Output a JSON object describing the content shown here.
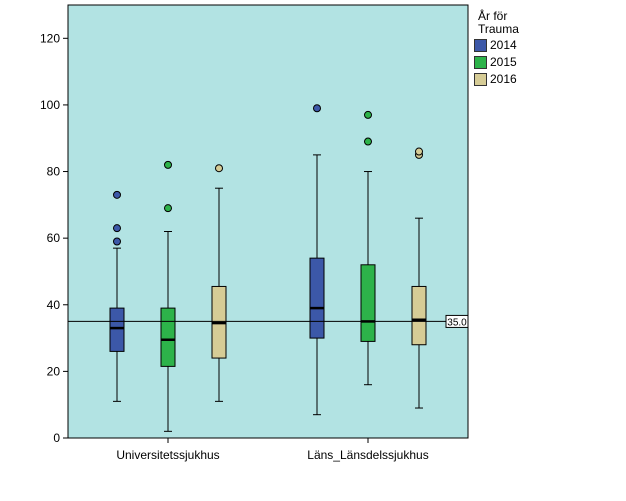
{
  "chart_data": {
    "type": "boxplot",
    "categories": [
      "Universitetssjukhus",
      "Läns_Länsdelssjukhus"
    ],
    "ylim": [
      0,
      130
    ],
    "yticks": [
      0,
      20,
      40,
      60,
      80,
      100,
      120
    ],
    "plot_background": "#b2e3e3",
    "reference_line": {
      "value": 35,
      "label": "35.0"
    },
    "legend": {
      "title_line1": "År för",
      "title_line2": "Trauma",
      "placement": "right"
    },
    "series": [
      {
        "name": "2014",
        "color": "#3c58a8",
        "boxes": [
          {
            "whisker_low": 11,
            "q1": 26,
            "median": 33,
            "q3": 39,
            "whisker_high": 57,
            "outliers": [
              59,
              63,
              73
            ]
          },
          {
            "whisker_low": 7,
            "q1": 30,
            "median": 39,
            "q3": 54,
            "whisker_high": 85,
            "outliers": [
              99
            ]
          }
        ]
      },
      {
        "name": "2015",
        "color": "#2db34a",
        "boxes": [
          {
            "whisker_low": 2,
            "q1": 21.5,
            "median": 29.5,
            "q3": 39,
            "whisker_high": 62,
            "outliers": [
              69,
              82
            ]
          },
          {
            "whisker_low": 16,
            "q1": 29,
            "median": 35,
            "q3": 52,
            "whisker_high": 80,
            "outliers": [
              89,
              97
            ]
          }
        ]
      },
      {
        "name": "2016",
        "color": "#d6cc96",
        "boxes": [
          {
            "whisker_low": 11,
            "q1": 24,
            "median": 34.5,
            "q3": 45.5,
            "whisker_high": 75,
            "outliers": [
              81
            ]
          },
          {
            "whisker_low": 9,
            "q1": 28,
            "median": 35.5,
            "q3": 45.5,
            "whisker_high": 66,
            "outliers": [
              85,
              86
            ]
          }
        ]
      }
    ]
  }
}
